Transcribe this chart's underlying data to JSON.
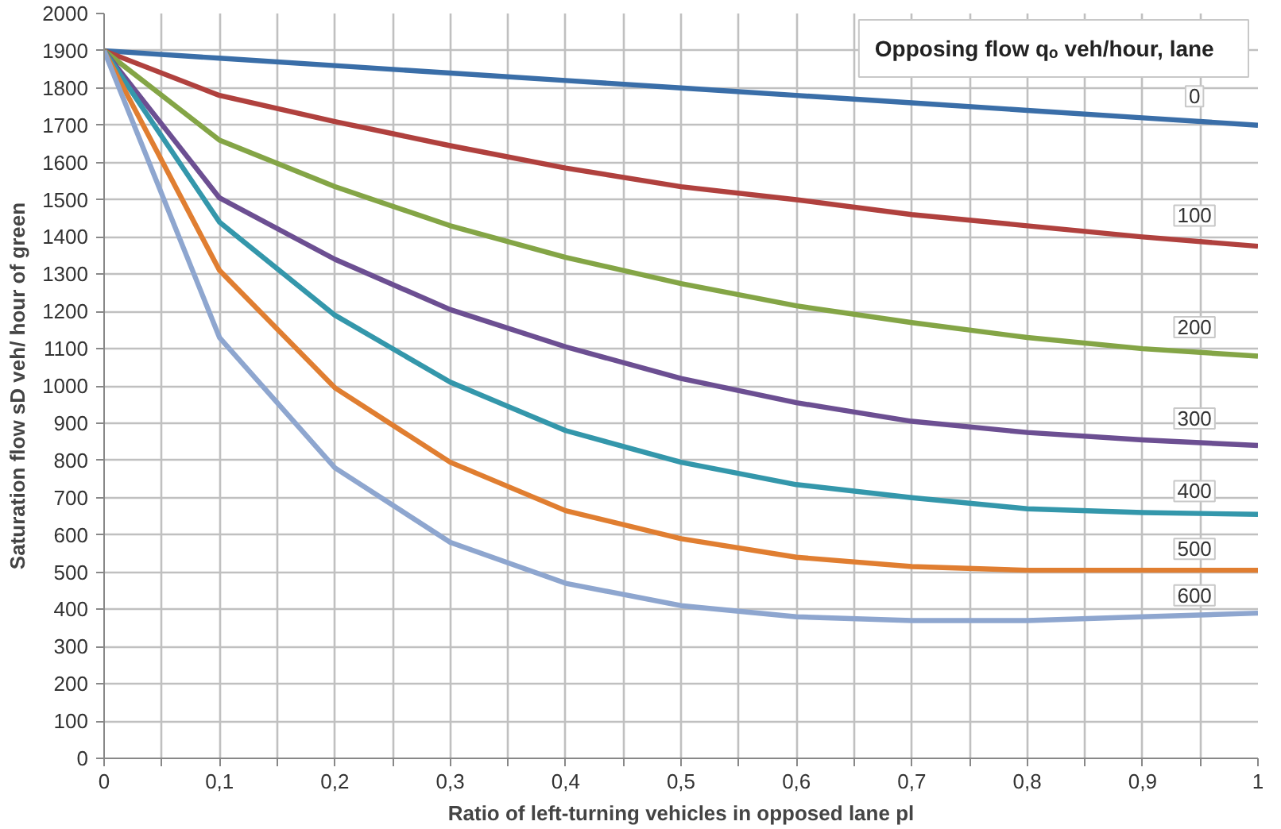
{
  "chart_data": {
    "type": "line",
    "xlabel": "Ratio of left-turning vehicles in opposed lane pl",
    "ylabel": "Saturation flow sD veh/ hour of green",
    "legend_title": "Opposing flow   qₒ  veh/hour, lane",
    "x": [
      0,
      0.1,
      0.2,
      0.3,
      0.4,
      0.5,
      0.6,
      0.7,
      0.8,
      0.9,
      1
    ],
    "series": [
      {
        "name": "0",
        "color": "#3a6ea8",
        "values": [
          1900,
          1880,
          1860,
          1840,
          1820,
          1800,
          1780,
          1760,
          1740,
          1720,
          1700
        ]
      },
      {
        "name": "100",
        "color": "#b0413e",
        "values": [
          1900,
          1780,
          1710,
          1645,
          1585,
          1535,
          1500,
          1460,
          1430,
          1400,
          1375
        ]
      },
      {
        "name": "200",
        "color": "#84a546",
        "values": [
          1900,
          1660,
          1535,
          1430,
          1345,
          1275,
          1215,
          1170,
          1130,
          1100,
          1080
        ]
      },
      {
        "name": "300",
        "color": "#6c4f92",
        "values": [
          1900,
          1505,
          1340,
          1205,
          1105,
          1020,
          955,
          905,
          875,
          855,
          840
        ]
      },
      {
        "name": "400",
        "color": "#3497ab",
        "values": [
          1900,
          1440,
          1190,
          1010,
          880,
          795,
          735,
          700,
          670,
          660,
          655
        ]
      },
      {
        "name": "500",
        "color": "#e07e31",
        "values": [
          1900,
          1310,
          995,
          795,
          665,
          590,
          540,
          515,
          505,
          505,
          505
        ]
      },
      {
        "name": "600",
        "color": "#8ea6cf",
        "values": [
          1900,
          1130,
          780,
          580,
          470,
          410,
          380,
          370,
          370,
          380,
          390
        ]
      }
    ],
    "xlim": [
      0,
      1
    ],
    "ylim": [
      0,
      2000
    ],
    "xticks": [
      0,
      {
        "value": 0.05,
        "label": null
      },
      {
        "value": 0.1,
        "label": "0,1"
      },
      {
        "value": 0.15,
        "label": null
      },
      {
        "value": 0.2,
        "label": "0,2"
      },
      {
        "value": 0.25,
        "label": null
      },
      {
        "value": 0.3,
        "label": "0,3"
      },
      {
        "value": 0.35,
        "label": null
      },
      {
        "value": 0.4,
        "label": "0,4"
      },
      {
        "value": 0.45,
        "label": null
      },
      {
        "value": 0.5,
        "label": "0,5"
      },
      {
        "value": 0.55,
        "label": null
      },
      {
        "value": 0.6,
        "label": "0,6"
      },
      {
        "value": 0.65,
        "label": null
      },
      {
        "value": 0.7,
        "label": "0,7"
      },
      {
        "value": 0.75,
        "label": null
      },
      {
        "value": 0.8,
        "label": "0,8"
      },
      {
        "value": 0.85,
        "label": null
      },
      {
        "value": 0.9,
        "label": "0,9"
      },
      {
        "value": 0.95,
        "label": null
      },
      1
    ],
    "yticks": [
      0,
      100,
      200,
      300,
      400,
      500,
      600,
      700,
      800,
      900,
      1000,
      1100,
      1200,
      1300,
      1400,
      1500,
      1600,
      1700,
      1800,
      1900,
      2000
    ],
    "grid": true,
    "legend": false,
    "marker": "none",
    "line_style": "solid"
  }
}
